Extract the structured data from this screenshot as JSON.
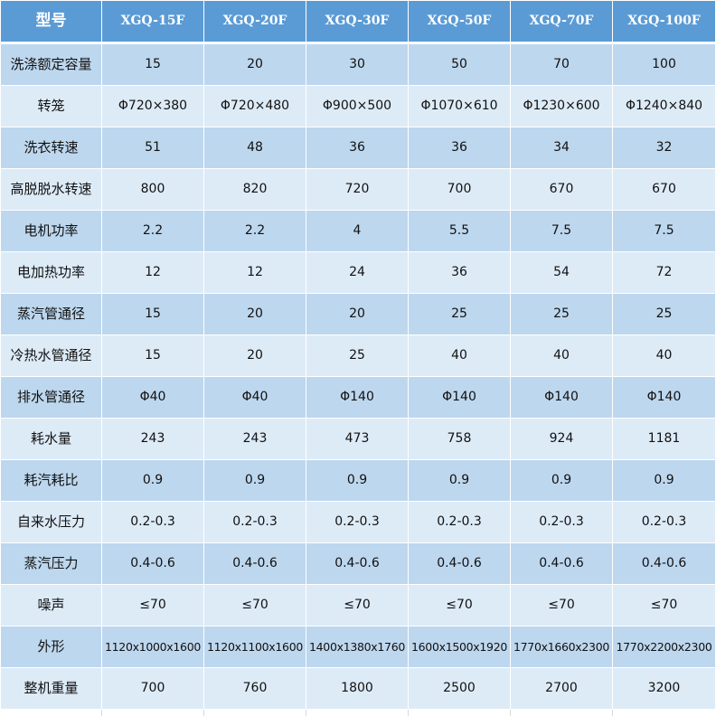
{
  "header": [
    "型号",
    "XGQ-15F",
    "XGQ-20F",
    "XGQ-30F",
    "XGQ-50F",
    "XGQ-70F",
    "XGQ-100F"
  ],
  "rows": [
    {
      "label": "洗涤额定容量",
      "values": [
        "15",
        "20",
        "30",
        "50",
        "70",
        "100"
      ]
    },
    {
      "label": "转笼",
      "values": [
        "Φ720×380",
        "Φ720×480",
        "Φ900×500",
        "Φ1070×610",
        "Φ1230×600",
        "Φ1240×840"
      ]
    },
    {
      "label": "洗衣转速",
      "values": [
        "51",
        "48",
        "36",
        "36",
        "34",
        "32"
      ]
    },
    {
      "label": "高脱脱水转速",
      "values": [
        "800",
        "820",
        "720",
        "700",
        "670",
        "670"
      ]
    },
    {
      "label": "电机功率",
      "values": [
        "2.2",
        "2.2",
        "4",
        "5.5",
        "7.5",
        "7.5"
      ]
    },
    {
      "label": "电加热功率",
      "values": [
        "12",
        "12",
        "24",
        "36",
        "54",
        "72"
      ]
    },
    {
      "label": "蒸汽管通径",
      "values": [
        "15",
        "20",
        "20",
        "25",
        "25",
        "25"
      ]
    },
    {
      "label": "冷热水管通径",
      "values": [
        "15",
        "20",
        "25",
        "40",
        "40",
        "40"
      ]
    },
    {
      "label": "排水管通径",
      "values": [
        "Φ40",
        "Φ40",
        "Φ140",
        "Φ140",
        "Φ140",
        "Φ140"
      ]
    },
    {
      "label": "耗水量",
      "values": [
        "243",
        "243",
        "473",
        "758",
        "924",
        "1181"
      ]
    },
    {
      "label": "耗汽耗比",
      "values": [
        "0.9",
        "0.9",
        "0.9",
        "0.9",
        "0.9",
        "0.9"
      ]
    },
    {
      "label": "自来水压力",
      "values": [
        "0.2-0.3",
        "0.2-0.3",
        "0.2-0.3",
        "0.2-0.3",
        "0.2-0.3",
        "0.2-0.3"
      ]
    },
    {
      "label": "蒸汽压力",
      "values": [
        "0.4-0.6",
        "0.4-0.6",
        "0.4-0.6",
        "0.4-0.6",
        "0.4-0.6",
        "0.4-0.6"
      ]
    },
    {
      "label": "噪声",
      "values": [
        "≤70",
        "≤70",
        "≤70",
        "≤70",
        "≤70",
        "≤70"
      ]
    },
    {
      "label": "外形",
      "values": [
        "1120x1000x1600",
        "1120x1100x1600",
        "1400x1380x1760",
        "1600x1500x1920",
        "1770x1660x2300",
        "1770x2200x2300"
      ]
    },
    {
      "label": "整机重量",
      "values": [
        "700",
        "760",
        "1800",
        "2500",
        "2700",
        "3200"
      ]
    }
  ],
  "colors": {
    "header": "#5b9bd5",
    "row_dark": "#bdd7ee",
    "row_light": "#ddebf7"
  }
}
